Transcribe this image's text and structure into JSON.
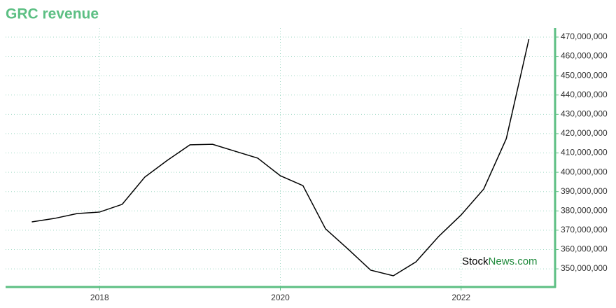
{
  "chart_data": {
    "type": "line",
    "title": "GRC revenue",
    "watermark": [
      "Stock",
      "News.com"
    ],
    "x": [
      2017.25,
      2017.5,
      2017.75,
      2018,
      2018.25,
      2018.5,
      2018.75,
      2019,
      2019.25,
      2019.5,
      2019.75,
      2020,
      2020.25,
      2020.5,
      2020.75,
      2021,
      2021.25,
      2021.5,
      2021.75,
      2022,
      2022.25,
      2022.5,
      2022.75
    ],
    "series": [
      {
        "name": "GRC revenue",
        "color": "#000000",
        "values": [
          374300000,
          376100000,
          378600000,
          379400000,
          383400000,
          397500000,
          406200000,
          414200000,
          414500000,
          410900000,
          407300000,
          398200000,
          393100000,
          370700000,
          360200000,
          349300000,
          346400000,
          353600000,
          366700000,
          377900000,
          391300000,
          417400000,
          468900000
        ]
      }
    ],
    "xlim": [
      2016.96,
      2023.04
    ],
    "xticks": [
      2018,
      2020,
      2022
    ],
    "ylim": [
      340600000,
      474700000
    ],
    "yticks": [
      {
        "value": 350000000,
        "label": "350,000,000"
      },
      {
        "value": 360000000,
        "label": "360,000,000"
      },
      {
        "value": 370000000,
        "label": "370,000,000"
      },
      {
        "value": 380000000,
        "label": "380,000,000"
      },
      {
        "value": 390000000,
        "label": "390,000,000"
      },
      {
        "value": 400000000,
        "label": "400,000,000"
      },
      {
        "value": 410000000,
        "label": "410,000,000"
      },
      {
        "value": 420000000,
        "label": "420,000,000"
      },
      {
        "value": 430000000,
        "label": "430,000,000"
      },
      {
        "value": 440000000,
        "label": "440,000,000"
      },
      {
        "value": 450000000,
        "label": "450,000,000"
      },
      {
        "value": 460000000,
        "label": "460,000,000"
      },
      {
        "value": 470000000,
        "label": "470,000,000"
      }
    ],
    "grid": true,
    "axis_color": "#5cbf83"
  }
}
